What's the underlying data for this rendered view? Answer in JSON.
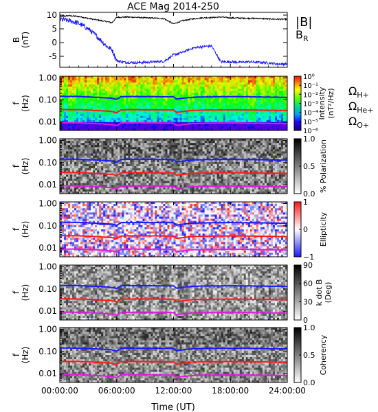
{
  "title": "ACE Mag 2014-250",
  "xaxis": {
    "label": "Time (UT)",
    "ticks": [
      "00:00:00",
      "06:00:00",
      "12:00:00",
      "18:00:00",
      "24:00:00"
    ],
    "tick_values": [
      0,
      6,
      12,
      18,
      24
    ],
    "range": [
      0,
      24
    ]
  },
  "colors": {
    "blue": "#1a1aff",
    "red": "#ff1a1a",
    "magenta": "#e01ae0",
    "black": "#000000"
  },
  "chart_data": [
    {
      "type": "line",
      "panel": "magnetic-field",
      "ylabel": "B",
      "yunits": "(nT)",
      "ylim": [
        -9,
        11
      ],
      "yticks": [
        10,
        5,
        0,
        -5
      ],
      "legend_placement": "right",
      "series": [
        {
          "name": "|B|",
          "color": "#000000",
          "x": [
            0,
            1,
            2,
            3,
            4,
            5,
            5.5,
            6,
            7,
            8,
            9,
            10,
            11,
            12,
            13,
            14,
            15,
            16,
            17,
            18,
            19,
            20,
            21,
            22,
            23,
            24
          ],
          "y": [
            9.5,
            9.8,
            9.5,
            8.8,
            8.2,
            7.6,
            7.2,
            9.2,
            9.3,
            9.2,
            9.0,
            8.9,
            8.7,
            6.8,
            8.0,
            8.6,
            9.0,
            9.1,
            9.3,
            9.0,
            8.9,
            8.8,
            8.8,
            8.6,
            8.5,
            8.5
          ]
        },
        {
          "name": "B",
          "subscript": "R",
          "color": "#1a1aff",
          "x": [
            0,
            1,
            2,
            3,
            4,
            5,
            5.5,
            6,
            6.5,
            7,
            8,
            9,
            10,
            11,
            12,
            13,
            14,
            15,
            16,
            17,
            18,
            19,
            20,
            21,
            22,
            23,
            24
          ],
          "y": [
            8.5,
            8.0,
            7.0,
            5.0,
            2.0,
            -1.5,
            -2.5,
            -6.5,
            -7.0,
            -7.2,
            -7.3,
            -7.2,
            -7.0,
            -6.8,
            -4.5,
            -3.5,
            -2.0,
            -1.5,
            -1.2,
            -7.0,
            -7.0,
            -7.2,
            -7.0,
            -7.2,
            -7.4,
            -7.8,
            -7.8
          ]
        }
      ]
    },
    {
      "type": "heatmap",
      "panel": "intensity",
      "ylabel": "f",
      "yunits": "(Hz)",
      "yscale": "log",
      "ylim": [
        0.004,
        1.2
      ],
      "yticks": [
        "1.00",
        "0.10",
        "0.01"
      ],
      "ytick_values": [
        1.0,
        0.1,
        0.01
      ],
      "colorbar": {
        "label": "Intensity",
        "units": "(nT²/Hz)",
        "colormap": "rainbow",
        "range": [
          -6,
          0
        ],
        "scale": "log",
        "ticks": [
          "10⁰",
          "10⁻¹",
          "10⁻²",
          "10⁻³",
          "10⁻⁴",
          "10⁻⁵",
          "10⁻⁶"
        ]
      },
      "legend": [
        {
          "symbol": "Ω",
          "subscript": "H+",
          "color": "#1a1aff"
        },
        {
          "symbol": "Ω",
          "subscript": "He+",
          "color": "#ff1a1a"
        },
        {
          "symbol": "Ω",
          "subscript": "O+",
          "color": "#e01ae0"
        }
      ]
    },
    {
      "type": "heatmap",
      "panel": "polarization",
      "ylabel": "f",
      "yunits": "(Hz)",
      "yscale": "log",
      "ylim": [
        0.004,
        1.2
      ],
      "yticks": [
        "1.00",
        "0.10",
        "0.01"
      ],
      "ytick_values": [
        1.0,
        0.1,
        0.01
      ],
      "colorbar": {
        "label": "% Polarization",
        "colormap": "gray",
        "range": [
          0,
          1
        ],
        "ticks": [
          "1.0",
          "0.5",
          "0.0"
        ]
      }
    },
    {
      "type": "heatmap",
      "panel": "ellipticity",
      "ylabel": "f",
      "yunits": "(Hz)",
      "yscale": "log",
      "ylim": [
        0.004,
        1.2
      ],
      "yticks": [
        "1.00",
        "0.10",
        "0.01"
      ],
      "ytick_values": [
        1.0,
        0.1,
        0.01
      ],
      "colorbar": {
        "label": "Ellipticity",
        "colormap": "bwr",
        "range": [
          -1,
          1
        ],
        "ticks": [
          "1",
          "0",
          "−1"
        ]
      }
    },
    {
      "type": "heatmap",
      "panel": "k-dot-b",
      "ylabel": "f",
      "yunits": "(Hz)",
      "yscale": "log",
      "ylim": [
        0.004,
        1.2
      ],
      "yticks": [
        "1.00",
        "0.10",
        "0.01"
      ],
      "ytick_values": [
        1.0,
        0.1,
        0.01
      ],
      "colorbar": {
        "label": "k dot B",
        "units": "(Deg)",
        "colormap": "gray",
        "range": [
          0,
          90
        ],
        "ticks": [
          "90",
          "60",
          "30",
          "0"
        ]
      }
    },
    {
      "type": "heatmap",
      "panel": "coherency",
      "ylabel": "f",
      "yunits": "(Hz)",
      "yscale": "log",
      "ylim": [
        0.004,
        1.2
      ],
      "yticks": [
        "1.00",
        "0.10",
        "0.01"
      ],
      "ytick_values": [
        1.0,
        0.1,
        0.01
      ],
      "colorbar": {
        "label": "Coherency",
        "colormap": "gray",
        "range": [
          0,
          1
        ],
        "ticks": [
          "1.0",
          "0.5",
          "0.0"
        ]
      }
    }
  ],
  "gyrofrequency_lines": [
    {
      "name": "Ω H+",
      "color": "#1a1aff",
      "x": [
        0,
        2,
        4,
        5.5,
        6,
        6.5,
        8,
        10,
        12,
        12.3,
        14,
        16,
        18,
        20,
        22,
        24
      ],
      "y": [
        0.145,
        0.142,
        0.13,
        0.118,
        0.105,
        0.14,
        0.142,
        0.14,
        0.138,
        0.108,
        0.132,
        0.138,
        0.14,
        0.138,
        0.134,
        0.13
      ]
    },
    {
      "name": "Ω He+",
      "color": "#ff1a1a",
      "x": [
        0,
        2,
        4,
        5.5,
        6,
        6.5,
        8,
        10,
        12,
        12.3,
        14,
        16,
        18,
        20,
        22,
        24
      ],
      "y": [
        0.036,
        0.0355,
        0.0325,
        0.0295,
        0.026,
        0.035,
        0.0355,
        0.035,
        0.0345,
        0.027,
        0.033,
        0.0345,
        0.035,
        0.0345,
        0.0335,
        0.0325
      ]
    },
    {
      "name": "Ω O+",
      "color": "#e01ae0",
      "x": [
        0,
        2,
        4,
        5.5,
        6,
        6.5,
        8,
        10,
        12,
        12.3,
        14,
        16,
        18,
        20,
        22,
        24
      ],
      "y": [
        0.0091,
        0.0089,
        0.0082,
        0.0074,
        0.0066,
        0.0088,
        0.0089,
        0.0088,
        0.0086,
        0.0068,
        0.0083,
        0.0086,
        0.0088,
        0.0086,
        0.0084,
        0.0082
      ]
    }
  ]
}
